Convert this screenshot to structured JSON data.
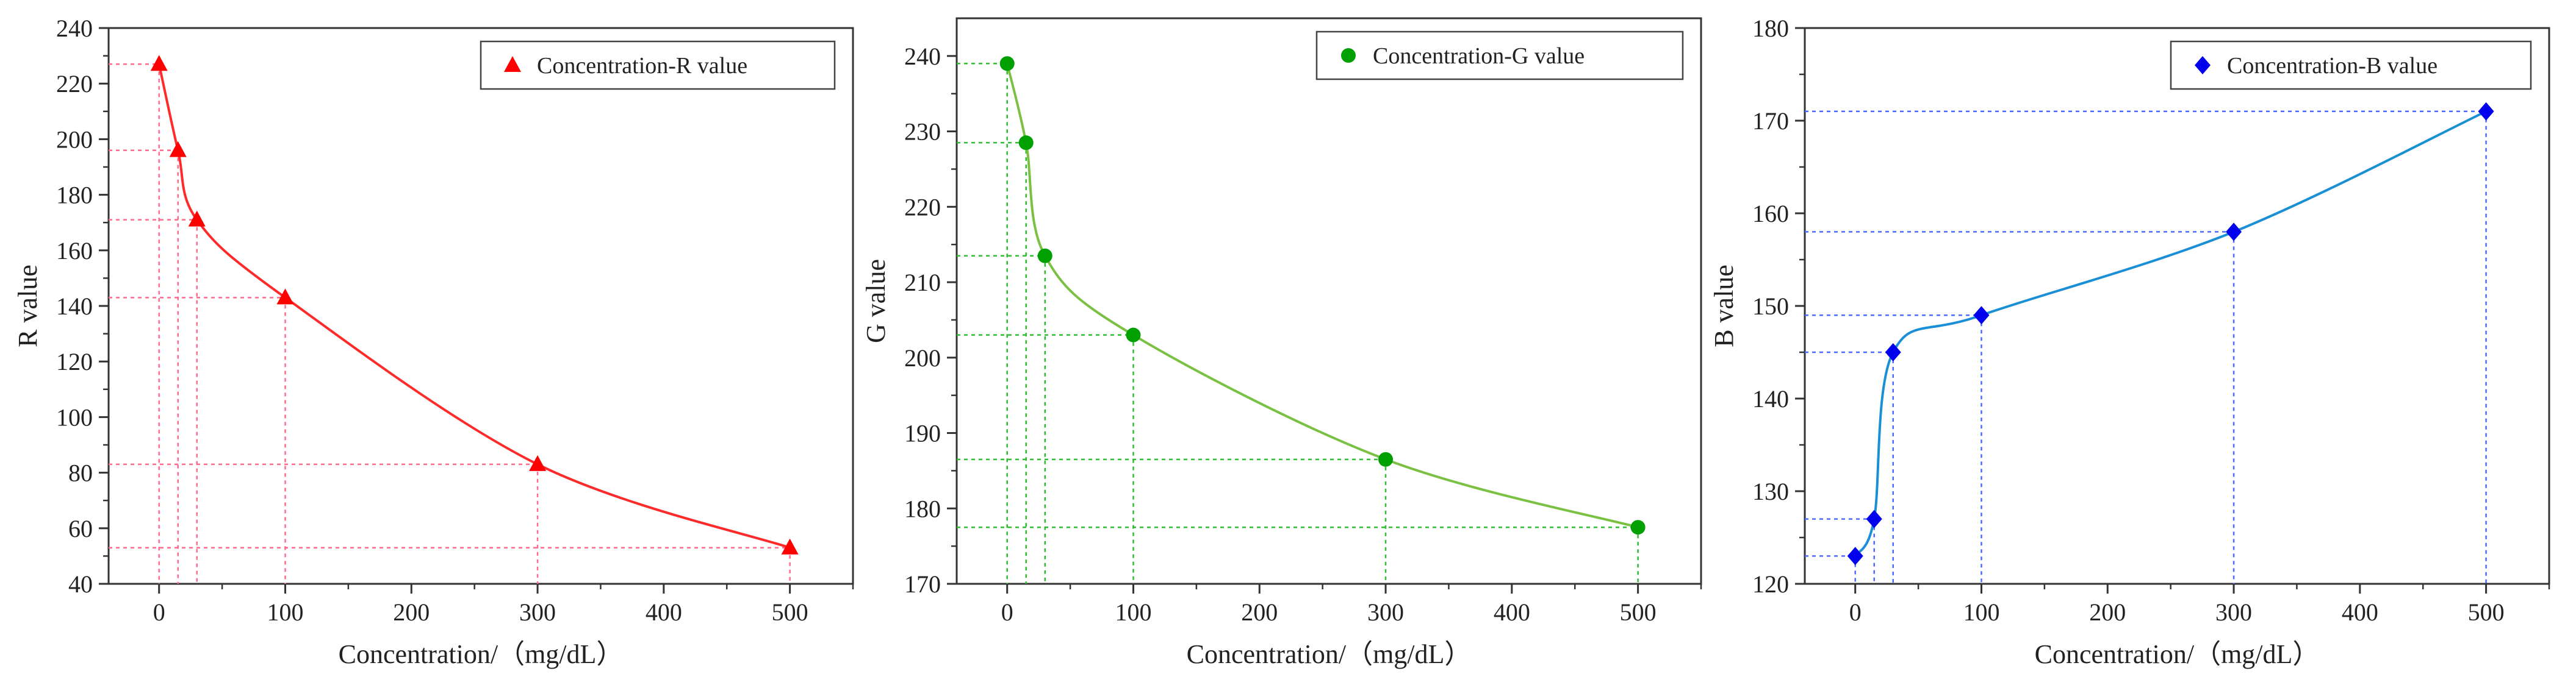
{
  "chart_data": [
    {
      "type": "scatter",
      "title": "",
      "xlabel": "Concentration/（mg/dL）",
      "ylabel": "R value",
      "xlim": [
        -40,
        550
      ],
      "ylim": [
        40,
        240
      ],
      "x_ticks": [
        0,
        100,
        200,
        300,
        400,
        500
      ],
      "y_ticks": [
        40,
        60,
        80,
        100,
        120,
        140,
        160,
        180,
        200,
        220,
        240
      ],
      "x_tick_labels": [
        "0",
        "100",
        "200",
        "300",
        "400",
        "500"
      ],
      "y_tick_labels": [
        "40",
        "60",
        "80",
        "100",
        "120",
        "140",
        "160",
        "180",
        "200",
        "220",
        "240"
      ],
      "series": [
        {
          "name": "Concentration-R value",
          "marker": "triangle",
          "color": "#ff0000",
          "curve_color": "#ff2a2a",
          "x": [
            0,
            15,
            30,
            100,
            300,
            500
          ],
          "y": [
            227,
            196,
            171,
            143,
            83,
            53
          ]
        }
      ],
      "legend": {
        "position": "top-right",
        "label": "Concentration-R value"
      },
      "guide_color": "#ff6b8b"
    },
    {
      "type": "scatter",
      "title": "",
      "xlabel": "Concentration/（mg/dL）",
      "ylabel": "G value",
      "xlim": [
        -40,
        550
      ],
      "ylim": [
        170,
        245
      ],
      "x_ticks": [
        0,
        100,
        200,
        300,
        400,
        500
      ],
      "y_ticks": [
        170,
        180,
        190,
        200,
        210,
        220,
        230,
        240
      ],
      "x_tick_labels": [
        "0",
        "100",
        "200",
        "300",
        "400",
        "500"
      ],
      "y_tick_labels": [
        "170",
        "180",
        "190",
        "200",
        "210",
        "220",
        "230",
        "240"
      ],
      "series": [
        {
          "name": "Concentration-G value",
          "marker": "circle",
          "color": "#00a000",
          "curve_color": "#7ac143",
          "x": [
            0,
            15,
            30,
            100,
            300,
            500
          ],
          "y": [
            239,
            228.5,
            213.5,
            203,
            186.5,
            177.5
          ]
        }
      ],
      "legend": {
        "position": "top-right",
        "label": "Concentration-G value"
      },
      "guide_color": "#33bb33"
    },
    {
      "type": "scatter",
      "title": "",
      "xlabel": "Concentration/（mg/dL）",
      "ylabel": "B value",
      "xlim": [
        -40,
        550
      ],
      "ylim": [
        120,
        180
      ],
      "x_ticks": [
        0,
        100,
        200,
        300,
        400,
        500
      ],
      "y_ticks": [
        120,
        130,
        140,
        150,
        160,
        170,
        180
      ],
      "x_tick_labels": [
        "0",
        "100",
        "200",
        "300",
        "400",
        "500"
      ],
      "y_tick_labels": [
        "120",
        "130",
        "140",
        "150",
        "160",
        "170",
        "180"
      ],
      "series": [
        {
          "name": "Concentration-B value",
          "marker": "diamond",
          "color": "#0000ee",
          "curve_color": "#1a8fd6",
          "x": [
            0,
            15,
            30,
            100,
            300,
            500
          ],
          "y": [
            123,
            127,
            145,
            149,
            158,
            171
          ]
        }
      ],
      "legend": {
        "position": "top-right",
        "label": "Concentration-B value"
      },
      "guide_color": "#4d6bff"
    }
  ]
}
